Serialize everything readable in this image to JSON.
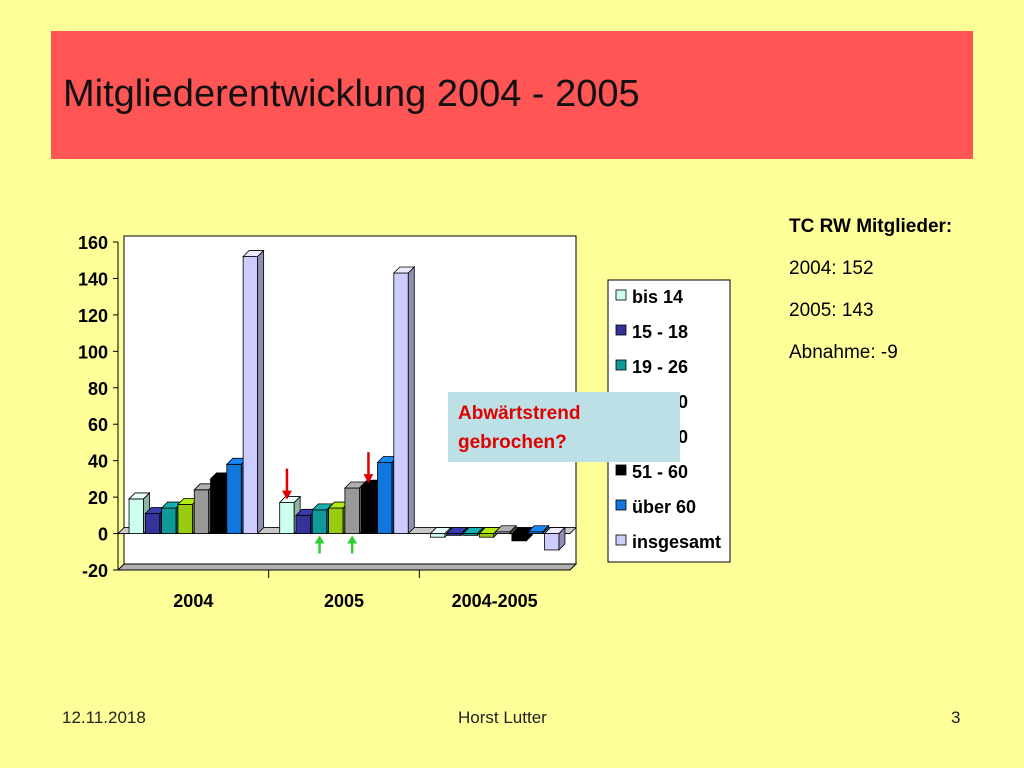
{
  "title": "Mitgliederentwicklung 2004 - 2005",
  "side_info": {
    "heading": "TC RW Mitglieder:",
    "line_2004": "2004: 152",
    "line_2005": "2005: 143",
    "line_change": "Abnahme: -9"
  },
  "callout": {
    "line1": "Abwärtstrend",
    "line2": "gebrochen?"
  },
  "footer": {
    "date": "12.11.2018",
    "author": "Horst Lutter",
    "page": "3"
  },
  "colors": {
    "title_bg": "#ff5555",
    "slide_bg": "#ffff99",
    "annotation_arrow_down": "#e00000",
    "annotation_arrow_up": "#33cc33"
  },
  "chart_data": {
    "type": "bar",
    "categories": [
      "2004",
      "2005",
      "2004-2005"
    ],
    "series": [
      {
        "name": "bis 14",
        "values": [
          19,
          17,
          -2
        ],
        "color": "#ccffee"
      },
      {
        "name": "15 - 18",
        "values": [
          11,
          10,
          -1
        ],
        "color": "#333399"
      },
      {
        "name": "19 - 26",
        "values": [
          14,
          13,
          -1
        ],
        "color": "#119999"
      },
      {
        "name": "27 - 40",
        "values": [
          16,
          14,
          -2
        ],
        "color": "#99cc11"
      },
      {
        "name": "41 - 50",
        "values": [
          24,
          25,
          1
        ],
        "color": "#999999"
      },
      {
        "name": "51 - 60",
        "values": [
          30,
          26,
          -4
        ],
        "color": "#000000"
      },
      {
        "name": "über 60",
        "values": [
          38,
          39,
          1
        ],
        "color": "#1177dd"
      },
      {
        "name": "insgesamt",
        "values": [
          152,
          143,
          -9
        ],
        "color": "#ccccff"
      }
    ],
    "yticks": [
      "160",
      "140",
      "120",
      "100",
      "80",
      "60",
      "40",
      "20",
      "0",
      "-20"
    ],
    "ylim": [
      -20,
      160
    ],
    "legend": "right",
    "grid": false,
    "annotations": {
      "down_arrows": [
        {
          "category": "2005",
          "series": "bis 14"
        },
        {
          "category": "2005",
          "series": "51 - 60"
        }
      ],
      "up_arrows": [
        {
          "category": "2005",
          "series": "19 - 26"
        },
        {
          "category": "2005",
          "series": "41 - 50"
        }
      ]
    }
  }
}
